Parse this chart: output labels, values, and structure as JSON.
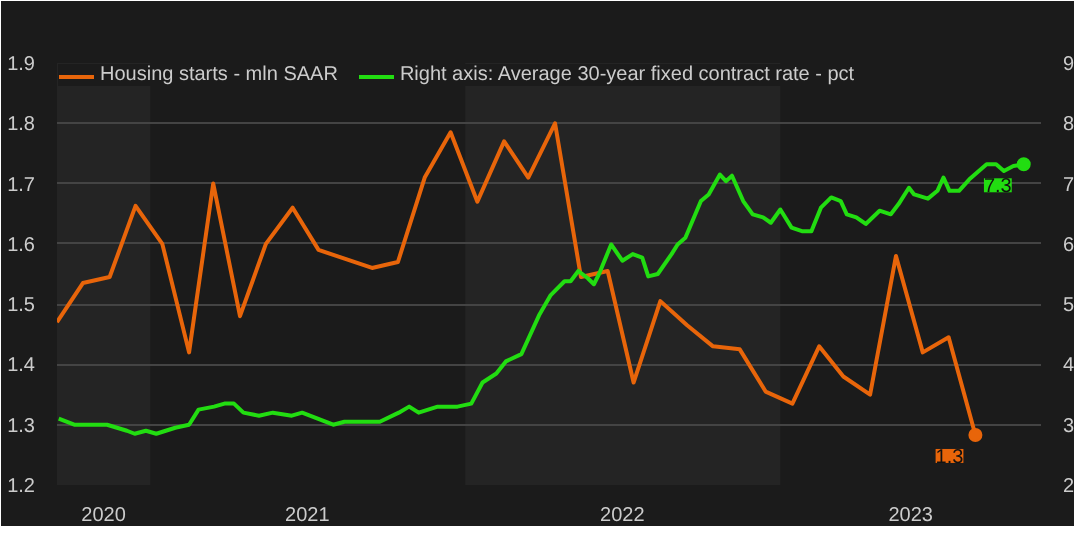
{
  "chart_data": {
    "type": "line",
    "xlim": [
      "2020-09-15",
      "2023-10-30"
    ],
    "xticks": [
      {
        "value": "2020-11-08",
        "label": "2020"
      },
      {
        "value": "2021-07-02",
        "label": "2021"
      },
      {
        "value": "2022-07-02",
        "label": "2022"
      },
      {
        "value": "2023-06-01",
        "label": "2023"
      }
    ],
    "ylim": [
      1.2,
      1.9
    ],
    "yticks": [
      1.2,
      1.3,
      1.4,
      1.5,
      1.6,
      1.7,
      1.8,
      1.9
    ],
    "y2lim": [
      2,
      9
    ],
    "y2ticks": [
      2,
      3,
      4,
      5,
      6,
      7,
      8,
      9
    ],
    "grid": "y",
    "legend": "top",
    "line_style": "solid",
    "bands": [
      {
        "axis": "x",
        "from": "2020-09-15",
        "to": "2021-01-01",
        "label": null,
        "color": "#242424"
      },
      {
        "axis": "x",
        "from": "2022-01-01",
        "to": "2023-01-01",
        "label": null,
        "color": "#242424"
      }
    ],
    "series": [
      {
        "name": "Housing starts - mln SAAR",
        "color": "#e8650a",
        "x": [
          "2020-09-15",
          "2020-10-15",
          "2020-11-15",
          "2020-12-15",
          "2021-01-15",
          "2021-02-15",
          "2021-03-15",
          "2021-04-15",
          "2021-05-15",
          "2021-06-15",
          "2021-07-15",
          "2021-08-15",
          "2021-09-15",
          "2021-10-15",
          "2021-11-15",
          "2021-12-15",
          "2022-01-15",
          "2022-02-15",
          "2022-03-15",
          "2022-04-15",
          "2022-05-15",
          "2022-06-15",
          "2022-07-15",
          "2022-08-15",
          "2022-09-15",
          "2022-10-15",
          "2022-11-15",
          "2022-12-15",
          "2023-01-15",
          "2023-02-15",
          "2023-03-15",
          "2023-04-15",
          "2023-05-15",
          "2023-06-15",
          "2023-07-15",
          "2023-08-15"
        ],
        "values": [
          1.47,
          1.535,
          1.545,
          1.663,
          1.6,
          1.42,
          1.7,
          1.48,
          1.6,
          1.66,
          1.59,
          1.575,
          1.56,
          1.57,
          1.71,
          1.785,
          1.67,
          1.77,
          1.71,
          1.8,
          1.545,
          1.555,
          1.37,
          1.505,
          1.465,
          1.43,
          1.425,
          1.355,
          1.335,
          1.43,
          1.38,
          1.35,
          1.58,
          1.42,
          1.445,
          1.283
        ],
        "value_labels": [
          null,
          null,
          null,
          null,
          null,
          null,
          null,
          null,
          null,
          null,
          null,
          null,
          null,
          null,
          null,
          null,
          null,
          null,
          null,
          null,
          null,
          null,
          null,
          null,
          null,
          null,
          null,
          null,
          null,
          null,
          null,
          null,
          null,
          null,
          null,
          "1.3"
        ]
      },
      {
        "name": "Right axis: Average 30-year fixed contract rate - pct",
        "color": "#22dd11",
        "axis": "y2",
        "x": [
          "2020-09-17",
          "2020-10-05",
          "2020-11-12",
          "2020-12-05",
          "2020-12-14",
          "2020-12-27",
          "2021-01-08",
          "2021-01-30",
          "2021-02-15",
          "2021-02-26",
          "2021-03-16",
          "2021-03-28",
          "2021-04-08",
          "2021-04-19",
          "2021-05-07",
          "2021-05-23",
          "2021-06-14",
          "2021-06-26",
          "2021-07-14",
          "2021-08-01",
          "2021-08-14",
          "2021-09-24",
          "2021-10-16",
          "2021-10-28",
          "2021-11-08",
          "2021-11-30",
          "2021-12-23",
          "2022-01-08",
          "2022-01-21",
          "2022-02-06",
          "2022-02-17",
          "2022-03-07",
          "2022-03-28",
          "2022-04-10",
          "2022-04-26",
          "2022-05-03",
          "2022-05-12",
          "2022-05-23",
          "2022-05-30",
          "2022-06-05",
          "2022-06-19",
          "2022-07-02",
          "2022-07-14",
          "2022-07-25",
          "2022-08-01",
          "2022-08-12",
          "2022-08-28",
          "2022-09-04",
          "2022-09-13",
          "2022-10-01",
          "2022-10-10",
          "2022-10-23",
          "2022-10-30",
          "2022-11-06",
          "2022-11-19",
          "2022-11-30",
          "2022-12-12",
          "2022-12-21",
          "2023-01-01",
          "2023-01-14",
          "2023-01-26",
          "2023-02-06",
          "2023-02-17",
          "2023-03-01",
          "2023-03-12",
          "2023-03-19",
          "2023-03-30",
          "2023-04-10",
          "2023-04-26",
          "2023-05-09",
          "2023-05-18",
          "2023-05-30",
          "2023-06-05",
          "2023-06-21",
          "2023-07-02",
          "2023-07-09",
          "2023-07-16",
          "2023-07-27",
          "2023-08-08",
          "2023-08-19",
          "2023-08-28",
          "2023-09-08",
          "2023-09-17",
          "2023-09-28",
          "2023-10-10"
        ],
        "values": [
          3.1,
          3.0,
          3.0,
          2.9,
          2.85,
          2.9,
          2.85,
          2.95,
          3.0,
          3.25,
          3.3,
          3.35,
          3.35,
          3.2,
          3.15,
          3.2,
          3.15,
          3.2,
          3.1,
          3.0,
          3.05,
          3.05,
          3.2,
          3.3,
          3.2,
          3.3,
          3.3,
          3.35,
          3.7,
          3.85,
          4.05,
          4.17,
          4.83,
          5.15,
          5.38,
          5.38,
          5.55,
          5.43,
          5.33,
          5.5,
          5.99,
          5.72,
          5.83,
          5.77,
          5.46,
          5.5,
          5.83,
          5.99,
          6.1,
          6.71,
          6.82,
          7.15,
          7.04,
          7.13,
          6.71,
          6.49,
          6.44,
          6.35,
          6.57,
          6.27,
          6.21,
          6.21,
          6.6,
          6.77,
          6.71,
          6.49,
          6.44,
          6.33,
          6.55,
          6.49,
          6.66,
          6.93,
          6.82,
          6.75,
          6.88,
          7.1,
          6.88,
          6.88,
          7.07,
          7.21,
          7.32,
          7.32,
          7.21,
          7.29,
          7.32
        ],
        "value_labels": [
          null,
          null,
          null,
          null,
          null,
          null,
          null,
          null,
          null,
          null,
          null,
          null,
          null,
          null,
          null,
          null,
          null,
          null,
          null,
          null,
          null,
          null,
          null,
          null,
          null,
          null,
          null,
          null,
          null,
          null,
          null,
          null,
          null,
          null,
          null,
          null,
          null,
          null,
          null,
          null,
          null,
          null,
          null,
          null,
          null,
          null,
          null,
          null,
          null,
          null,
          null,
          null,
          null,
          null,
          null,
          null,
          null,
          null,
          null,
          null,
          null,
          null,
          null,
          null,
          null,
          null,
          null,
          null,
          null,
          null,
          null,
          null,
          null,
          null,
          null,
          null,
          null,
          null,
          null,
          null,
          null,
          null,
          null,
          null,
          "7.3"
        ]
      }
    ]
  }
}
